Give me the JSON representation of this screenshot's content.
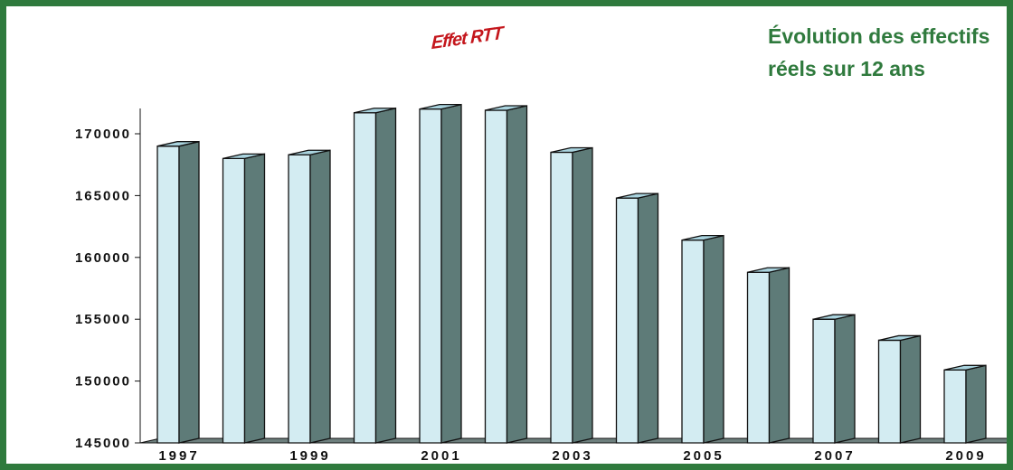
{
  "chart_data": {
    "type": "bar",
    "title_lines": [
      "Évolution des effectifs",
      "réels sur 12 ans"
    ],
    "annotation": "Effet RTT",
    "categories": [
      "1997",
      "1998",
      "1999",
      "2000",
      "2001",
      "2002",
      "2003",
      "2004",
      "2005",
      "2006",
      "2007",
      "2008",
      "2009"
    ],
    "x_tick_labels": [
      "1997",
      "",
      "1999",
      "",
      "2001",
      "",
      "2003",
      "",
      "2005",
      "",
      "2007",
      "",
      "2009"
    ],
    "values": [
      169000,
      168000,
      168300,
      171700,
      172000,
      171900,
      168500,
      164800,
      161400,
      158800,
      155000,
      153300,
      150900
    ],
    "y_ticks": [
      145000,
      150000,
      155000,
      160000,
      165000,
      170000
    ],
    "ylim": [
      145000,
      172000
    ],
    "xlabel": "",
    "ylabel": "",
    "grid": false,
    "style": "3d-bar",
    "colors": {
      "front": "#d3ecf2",
      "side": "#5e7b78",
      "top": "#a9d3de",
      "outline": "#111111",
      "floor": "#6d7f7d",
      "title": "#2f7a3d",
      "annotation": "#c4161c",
      "frame": "#2f7a3d"
    }
  }
}
